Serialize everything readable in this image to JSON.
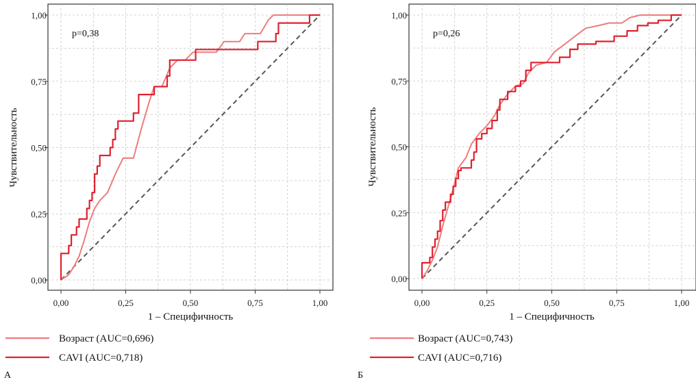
{
  "chart_data": [
    {
      "type": "line",
      "panel_label": "А",
      "annotation": "p=0,38",
      "xlabel": "1 – Специфичность",
      "ylabel": "Чувствительность",
      "xlim": [
        0,
        1
      ],
      "ylim": [
        0,
        1
      ],
      "x_ticks": [
        "0,00",
        "0,25",
        "0,50",
        "0,75",
        "1,00"
      ],
      "y_ticks": [
        "0,00",
        "0,25",
        "0,50",
        "0,75",
        "1,00"
      ],
      "grid": true,
      "legend_position": "bottom",
      "reference_line": true,
      "series": [
        {
          "name": "Возраст (AUC=0,696)",
          "color": "#ef7b7b",
          "points": [
            [
              0,
              0
            ],
            [
              0.03,
              0.02
            ],
            [
              0.05,
              0.05
            ],
            [
              0.07,
              0.09
            ],
            [
              0.09,
              0.15
            ],
            [
              0.11,
              0.22
            ],
            [
              0.13,
              0.27
            ],
            [
              0.15,
              0.3
            ],
            [
              0.18,
              0.33
            ],
            [
              0.21,
              0.4
            ],
            [
              0.24,
              0.46
            ],
            [
              0.28,
              0.46
            ],
            [
              0.31,
              0.57
            ],
            [
              0.34,
              0.67
            ],
            [
              0.36,
              0.73
            ],
            [
              0.39,
              0.73
            ],
            [
              0.42,
              0.8
            ],
            [
              0.45,
              0.83
            ],
            [
              0.48,
              0.83
            ],
            [
              0.51,
              0.86
            ],
            [
              0.6,
              0.86
            ],
            [
              0.63,
              0.9
            ],
            [
              0.69,
              0.9
            ],
            [
              0.71,
              0.93
            ],
            [
              0.77,
              0.93
            ],
            [
              0.8,
              0.98
            ],
            [
              0.82,
              1.0
            ],
            [
              1.0,
              1.0
            ]
          ]
        },
        {
          "name": "CAVI (AUC=0,718)",
          "color": "#e0202e",
          "points": [
            [
              0,
              0
            ],
            [
              0,
              0.03
            ],
            [
              0,
              0.1
            ],
            [
              0.03,
              0.1
            ],
            [
              0.03,
              0.13
            ],
            [
              0.04,
              0.13
            ],
            [
              0.04,
              0.17
            ],
            [
              0.06,
              0.17
            ],
            [
              0.06,
              0.2
            ],
            [
              0.07,
              0.2
            ],
            [
              0.07,
              0.23
            ],
            [
              0.1,
              0.23
            ],
            [
              0.1,
              0.27
            ],
            [
              0.11,
              0.27
            ],
            [
              0.11,
              0.3
            ],
            [
              0.12,
              0.3
            ],
            [
              0.12,
              0.33
            ],
            [
              0.13,
              0.33
            ],
            [
              0.13,
              0.4
            ],
            [
              0.14,
              0.4
            ],
            [
              0.14,
              0.43
            ],
            [
              0.15,
              0.43
            ],
            [
              0.15,
              0.47
            ],
            [
              0.19,
              0.47
            ],
            [
              0.19,
              0.5
            ],
            [
              0.2,
              0.5
            ],
            [
              0.2,
              0.53
            ],
            [
              0.21,
              0.53
            ],
            [
              0.21,
              0.57
            ],
            [
              0.22,
              0.57
            ],
            [
              0.22,
              0.6
            ],
            [
              0.28,
              0.6
            ],
            [
              0.28,
              0.63
            ],
            [
              0.3,
              0.63
            ],
            [
              0.3,
              0.7
            ],
            [
              0.36,
              0.7
            ],
            [
              0.36,
              0.73
            ],
            [
              0.41,
              0.73
            ],
            [
              0.41,
              0.77
            ],
            [
              0.42,
              0.77
            ],
            [
              0.42,
              0.83
            ],
            [
              0.52,
              0.83
            ],
            [
              0.52,
              0.87
            ],
            [
              0.76,
              0.87
            ],
            [
              0.76,
              0.9
            ],
            [
              0.83,
              0.9
            ],
            [
              0.83,
              0.93
            ],
            [
              0.84,
              0.93
            ],
            [
              0.84,
              0.97
            ],
            [
              0.96,
              0.97
            ],
            [
              0.96,
              1.0
            ],
            [
              1.0,
              1.0
            ]
          ]
        }
      ]
    },
    {
      "type": "line",
      "panel_label": "Б",
      "annotation": "p=0,26",
      "xlabel": "1 – Специфичность",
      "ylabel": "Чувствительность",
      "xlim": [
        0,
        1
      ],
      "ylim": [
        0,
        1
      ],
      "x_ticks": [
        "0,00",
        "0,25",
        "0,50",
        "0,75",
        "1,00"
      ],
      "y_ticks": [
        "0,00",
        "0,25",
        "0,50",
        "0,75",
        "1,00"
      ],
      "grid": true,
      "legend_position": "bottom",
      "reference_line": true,
      "series": [
        {
          "name": "Возраст (AUC=0,743)",
          "color": "#ef7b7b",
          "points": [
            [
              0,
              0
            ],
            [
              0.02,
              0.03
            ],
            [
              0.04,
              0.07
            ],
            [
              0.06,
              0.12
            ],
            [
              0.08,
              0.2
            ],
            [
              0.1,
              0.27
            ],
            [
              0.12,
              0.34
            ],
            [
              0.14,
              0.42
            ],
            [
              0.17,
              0.46
            ],
            [
              0.19,
              0.51
            ],
            [
              0.22,
              0.55
            ],
            [
              0.25,
              0.58
            ],
            [
              0.28,
              0.62
            ],
            [
              0.3,
              0.66
            ],
            [
              0.33,
              0.7
            ],
            [
              0.36,
              0.73
            ],
            [
              0.39,
              0.74
            ],
            [
              0.41,
              0.78
            ],
            [
              0.44,
              0.81
            ],
            [
              0.48,
              0.82
            ],
            [
              0.51,
              0.86
            ],
            [
              0.55,
              0.89
            ],
            [
              0.59,
              0.92
            ],
            [
              0.63,
              0.95
            ],
            [
              0.68,
              0.96
            ],
            [
              0.72,
              0.97
            ],
            [
              0.77,
              0.97
            ],
            [
              0.8,
              0.99
            ],
            [
              0.84,
              1.0
            ],
            [
              1.0,
              1.0
            ]
          ]
        },
        {
          "name": "CAVI (AUC=0,716)",
          "color": "#e0202e",
          "points": [
            [
              0,
              0
            ],
            [
              0,
              0.02
            ],
            [
              0,
              0.06
            ],
            [
              0.03,
              0.06
            ],
            [
              0.03,
              0.08
            ],
            [
              0.04,
              0.08
            ],
            [
              0.04,
              0.12
            ],
            [
              0.05,
              0.12
            ],
            [
              0.05,
              0.15
            ],
            [
              0.06,
              0.15
            ],
            [
              0.06,
              0.18
            ],
            [
              0.07,
              0.18
            ],
            [
              0.07,
              0.22
            ],
            [
              0.08,
              0.22
            ],
            [
              0.08,
              0.26
            ],
            [
              0.09,
              0.26
            ],
            [
              0.09,
              0.29
            ],
            [
              0.11,
              0.29
            ],
            [
              0.11,
              0.32
            ],
            [
              0.12,
              0.32
            ],
            [
              0.12,
              0.35
            ],
            [
              0.13,
              0.35
            ],
            [
              0.13,
              0.38
            ],
            [
              0.14,
              0.38
            ],
            [
              0.14,
              0.41
            ],
            [
              0.15,
              0.41
            ],
            [
              0.15,
              0.42
            ],
            [
              0.19,
              0.42
            ],
            [
              0.19,
              0.45
            ],
            [
              0.2,
              0.45
            ],
            [
              0.2,
              0.48
            ],
            [
              0.21,
              0.48
            ],
            [
              0.21,
              0.53
            ],
            [
              0.23,
              0.53
            ],
            [
              0.23,
              0.55
            ],
            [
              0.25,
              0.55
            ],
            [
              0.25,
              0.57
            ],
            [
              0.27,
              0.57
            ],
            [
              0.27,
              0.6
            ],
            [
              0.29,
              0.6
            ],
            [
              0.29,
              0.64
            ],
            [
              0.3,
              0.64
            ],
            [
              0.3,
              0.68
            ],
            [
              0.33,
              0.68
            ],
            [
              0.33,
              0.71
            ],
            [
              0.36,
              0.71
            ],
            [
              0.36,
              0.73
            ],
            [
              0.38,
              0.73
            ],
            [
              0.38,
              0.75
            ],
            [
              0.4,
              0.75
            ],
            [
              0.4,
              0.79
            ],
            [
              0.42,
              0.79
            ],
            [
              0.42,
              0.82
            ],
            [
              0.53,
              0.82
            ],
            [
              0.53,
              0.84
            ],
            [
              0.57,
              0.84
            ],
            [
              0.57,
              0.87
            ],
            [
              0.6,
              0.87
            ],
            [
              0.6,
              0.89
            ],
            [
              0.67,
              0.89
            ],
            [
              0.67,
              0.9
            ],
            [
              0.74,
              0.9
            ],
            [
              0.74,
              0.92
            ],
            [
              0.79,
              0.92
            ],
            [
              0.79,
              0.94
            ],
            [
              0.83,
              0.94
            ],
            [
              0.83,
              0.96
            ],
            [
              0.87,
              0.96
            ],
            [
              0.87,
              0.97
            ],
            [
              0.91,
              0.97
            ],
            [
              0.91,
              0.98
            ],
            [
              0.96,
              0.98
            ],
            [
              0.96,
              1.0
            ],
            [
              1.0,
              1.0
            ]
          ]
        }
      ]
    }
  ]
}
